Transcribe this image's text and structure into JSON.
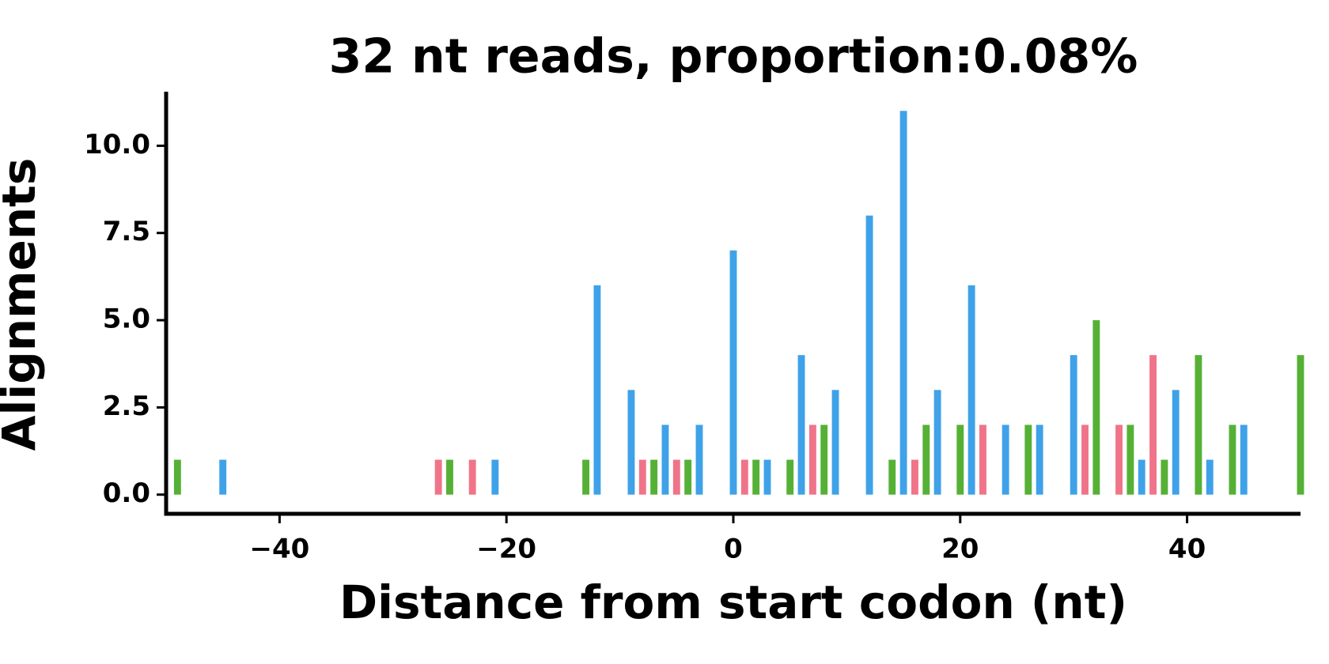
{
  "chart_data": {
    "type": "bar",
    "title": "32 nt reads, proportion:0.08%",
    "xlabel": "Distance from start codon (nt)",
    "ylabel": "Alignments",
    "xlim": [
      -50,
      50
    ],
    "xticks": [
      {
        "value": -40,
        "label": "−40"
      },
      {
        "value": -20,
        "label": "−20"
      },
      0,
      20,
      40
    ],
    "ylim": [
      -0.55,
      11.55
    ],
    "yticks": [
      {
        "value": 0,
        "label": "0.0"
      },
      2.5,
      {
        "value": 5,
        "label": "5.0"
      },
      7.5,
      {
        "value": 10,
        "label": "10.0"
      }
    ],
    "grid": false,
    "series": [
      {
        "color": "#3fa2e8",
        "x": [
          -45,
          -21,
          -12,
          -9,
          -6,
          -3,
          0,
          3,
          6,
          9,
          12,
          15,
          18,
          21,
          24,
          27,
          30,
          36,
          39,
          42,
          45
        ],
        "values": [
          1,
          1,
          6,
          3,
          2,
          2,
          7,
          1,
          4,
          3,
          8,
          11,
          3,
          6,
          2,
          2,
          4,
          1,
          3,
          1,
          2
        ]
      },
      {
        "color": "#f07489",
        "x": [
          -26,
          -23,
          -8,
          -5,
          1,
          7,
          16,
          22,
          31,
          34,
          37
        ],
        "values": [
          1,
          1,
          1,
          1,
          1,
          2,
          1,
          2,
          2,
          2,
          4
        ]
      },
      {
        "color": "#55b135",
        "x": [
          -49,
          -25,
          -13,
          -7,
          -4,
          2,
          5,
          8,
          14,
          17,
          20,
          26,
          32,
          35,
          38,
          41,
          44,
          50
        ],
        "values": [
          1,
          1,
          1,
          1,
          1,
          1,
          1,
          2,
          1,
          2,
          2,
          2,
          5,
          2,
          1,
          4,
          2,
          4
        ]
      }
    ]
  }
}
